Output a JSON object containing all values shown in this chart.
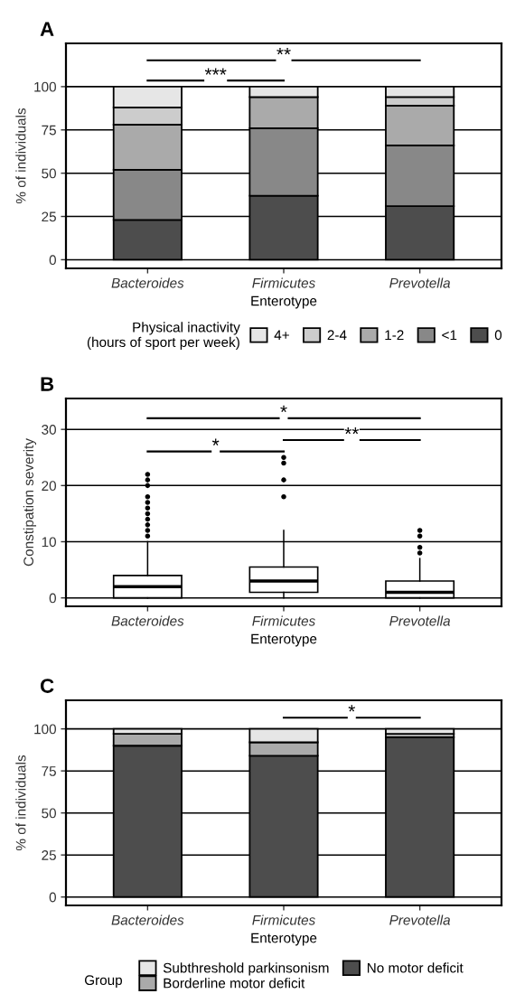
{
  "chart_data": [
    {
      "type": "bar",
      "title": "A",
      "stacked": true,
      "xlabel": "Enterotype",
      "ylabel": "% of individuals",
      "legend_title": "Physical inactivity\n(hours of sport per week)",
      "legend": "bottom",
      "grid": "y",
      "categories": [
        "Bacteroides",
        "Firmicutes",
        "Prevotella"
      ],
      "ylim": [
        -5,
        125
      ],
      "yticks": [
        0,
        25,
        50,
        75,
        100
      ],
      "series": [
        {
          "name": "0",
          "color": "#4d4d4d",
          "values": [
            23,
            37,
            31
          ]
        },
        {
          "name": "<1",
          "color": "#888888",
          "values": [
            29,
            39,
            35
          ]
        },
        {
          "name": "1-2",
          "color": "#aaaaaa",
          "values": [
            26,
            18,
            23
          ]
        },
        {
          "name": "2-4",
          "color": "#cccccc",
          "values": [
            10,
            0,
            5
          ]
        },
        {
          "name": "4+",
          "color": "#e6e6e6",
          "values": [
            12,
            6,
            6
          ]
        }
      ],
      "annotations": [
        "***",
        "**"
      ]
    },
    {
      "type": "box",
      "title": "B",
      "xlabel": "Enterotype",
      "ylabel": "Constipation severity",
      "grid": "y",
      "categories": [
        "Bacteroides",
        "Firmicutes",
        "Prevotella"
      ],
      "ylim": [
        -1.5,
        35.5
      ],
      "yticks": [
        0,
        10,
        20,
        30
      ],
      "boxes": [
        {
          "low": 0,
          "q1": 0,
          "median": 2,
          "q3": 4,
          "high": 10,
          "outliers": [
            11,
            12,
            13,
            14,
            15,
            16,
            17,
            18,
            20,
            21,
            22
          ]
        },
        {
          "low": 0,
          "q1": 1,
          "median": 3,
          "q3": 5.5,
          "high": 12,
          "outliers": [
            18,
            21,
            24,
            25
          ]
        },
        {
          "low": 0,
          "q1": 0,
          "median": 1,
          "q3": 3,
          "high": 7,
          "outliers": [
            8,
            9,
            11,
            12
          ]
        }
      ],
      "annotations": [
        "*",
        "*",
        "**"
      ]
    },
    {
      "type": "bar",
      "title": "C",
      "stacked": true,
      "xlabel": "Enterotype",
      "ylabel": "% of individuals",
      "legend_title": "Group",
      "legend": "bottom",
      "grid": "y",
      "categories": [
        "Bacteroides",
        "Firmicutes",
        "Prevotella"
      ],
      "ylim": [
        -5,
        117
      ],
      "yticks": [
        0,
        25,
        50,
        75,
        100
      ],
      "series": [
        {
          "name": "No motor deficit",
          "color": "#4d4d4d",
          "values": [
            90,
            84,
            95
          ]
        },
        {
          "name": "Borderline motor deficit",
          "color": "#aaaaaa",
          "values": [
            7,
            8,
            2
          ]
        },
        {
          "name": "Subthreshold parkinsonism",
          "color": "#e6e6e6",
          "values": [
            3,
            8,
            3
          ]
        }
      ],
      "annotations": [
        "*"
      ]
    }
  ]
}
